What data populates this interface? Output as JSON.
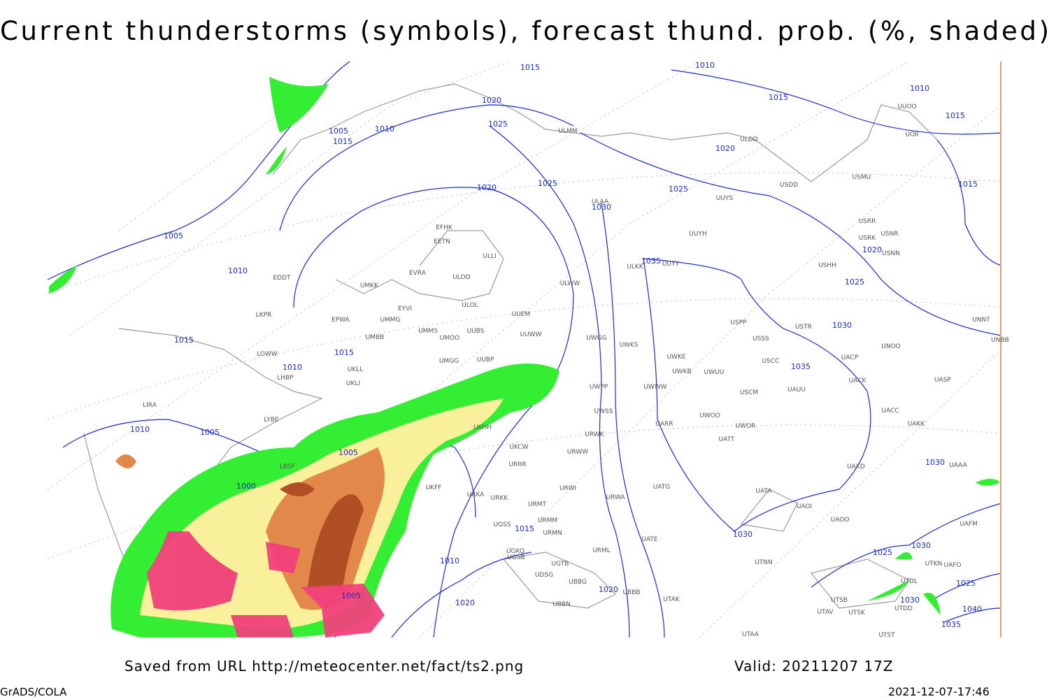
{
  "header": {
    "title": "Current thunderstorms (symbols), forecast thund. prob. (%, shaded)"
  },
  "footer": {
    "source": "Saved from URL http://meteocenter.net/fact/ts2.png",
    "valid": "Valid: 20211207 17Z",
    "credit": "GrADS/COLA",
    "timestamp": "2021-12-07-17:46"
  },
  "isobar_labels": [
    "1015",
    "1010",
    "1015",
    "1010",
    "1015",
    "1020",
    "1025",
    "1005",
    "1010",
    "1015",
    "1020",
    "1020",
    "1025",
    "1025",
    "1015",
    "1030",
    "1005",
    "1010",
    "1035",
    "1020",
    "1025",
    "1030",
    "1035",
    "1015",
    "1015",
    "1010",
    "1010",
    "1005",
    "1005",
    "1000",
    "1015",
    "1010",
    "1030",
    "1025",
    "1030",
    "1005",
    "1020",
    "1020",
    "1030",
    "1025",
    "1040",
    "1035",
    "1030"
  ],
  "stations": [
    "EFHK",
    "EETN",
    "EVRA",
    "ULOD",
    "UMKK",
    "EDDT",
    "EYVI",
    "ULOL",
    "UUEM",
    "LKPR",
    "EPWA",
    "UMMG",
    "UMMS",
    "UUBS",
    "UMOO",
    "UUWW",
    "UMBB",
    "LOWW",
    "UMGG",
    "UUBP",
    "UKLL",
    "LHBP",
    "UKLI",
    "LIRA",
    "LYBE",
    "LBSF",
    "ULLI",
    "ULMM",
    "ULDD",
    "UUOO",
    "UOII",
    "USDD",
    "USMU",
    "UUYS",
    "ULAA",
    "UUYH",
    "USRK",
    "USNR",
    "USRR",
    "UUYY",
    "ULWW",
    "USHH",
    "USNN",
    "ULKK",
    "USPP",
    "USSS",
    "USTR",
    "UNOO",
    "UNNT",
    "UNBB",
    "UWKE",
    "UWKS",
    "UWGG",
    "UWKB",
    "UWUU",
    "USCC",
    "UACP",
    "UACK",
    "UASP",
    "UWWW",
    "UWPP",
    "USCM",
    "UAUU",
    "UWSS",
    "UWOO",
    "UWOR",
    "UARR",
    "UACC",
    "UAKK",
    "URWK",
    "UKCW",
    "URWW",
    "UATT",
    "UAKD",
    "URRR",
    "URWI",
    "UATG",
    "URKA",
    "URKK",
    "URWA",
    "UATA",
    "UAOI",
    "URMT",
    "URMM",
    "URMN",
    "UGSS",
    "UATE",
    "UAOO",
    "UGKO",
    "UGSB",
    "URML",
    "UTNN",
    "UGTB",
    "UDSG",
    "UBBG",
    "UBBB",
    "UBBN",
    "UTAK",
    "UTSB",
    "UTAV",
    "UTSK",
    "UTDD",
    "UTAA",
    "UTST",
    "UTDL",
    "UTKN",
    "UAFO",
    "UAAA",
    "UAFM",
    "UKFF",
    "UKHH"
  ]
}
